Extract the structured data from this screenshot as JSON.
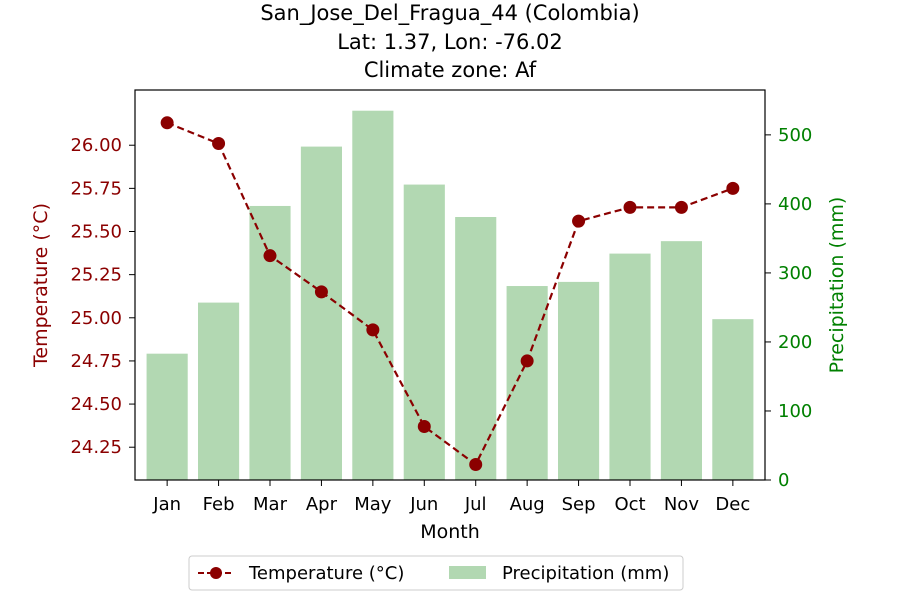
{
  "chart_data": {
    "type": "bar+line",
    "title_lines": [
      "San_Jose_Del_Fragua_44 (Colombia)",
      "Lat: 1.37, Lon: -76.02",
      "Climate zone: Af"
    ],
    "xlabel": "Month",
    "ylabel_left": "Temperature (°C)",
    "ylabel_right": "Precipitation (mm)",
    "categories": [
      "Jan",
      "Feb",
      "Mar",
      "Apr",
      "May",
      "Jun",
      "Jul",
      "Aug",
      "Sep",
      "Oct",
      "Nov",
      "Dec"
    ],
    "series": [
      {
        "name": "Temperature (°C)",
        "kind": "line",
        "axis": "left",
        "color": "#8b0000",
        "values": [
          26.13,
          26.01,
          25.36,
          25.15,
          24.93,
          24.37,
          24.15,
          24.75,
          25.56,
          25.64,
          25.64,
          25.75
        ]
      },
      {
        "name": "Precipitation (mm)",
        "kind": "bar",
        "axis": "right",
        "color": "#b2d8b2",
        "values": [
          183,
          257,
          397,
          483,
          535,
          428,
          381,
          281,
          287,
          328,
          346,
          233
        ]
      }
    ],
    "ylim_left": [
      24.06,
      26.32
    ],
    "ylim_right": [
      0,
      565
    ],
    "yticks_left": [
      "24.25",
      "24.50",
      "24.75",
      "25.00",
      "25.25",
      "25.50",
      "25.75",
      "26.00"
    ],
    "yticks_right": [
      "0",
      "100",
      "200",
      "300",
      "400",
      "500"
    ],
    "left_axis_color": "#8b0000",
    "right_axis_color": "#008000",
    "grid": false,
    "legend_position": "bottom-center"
  }
}
